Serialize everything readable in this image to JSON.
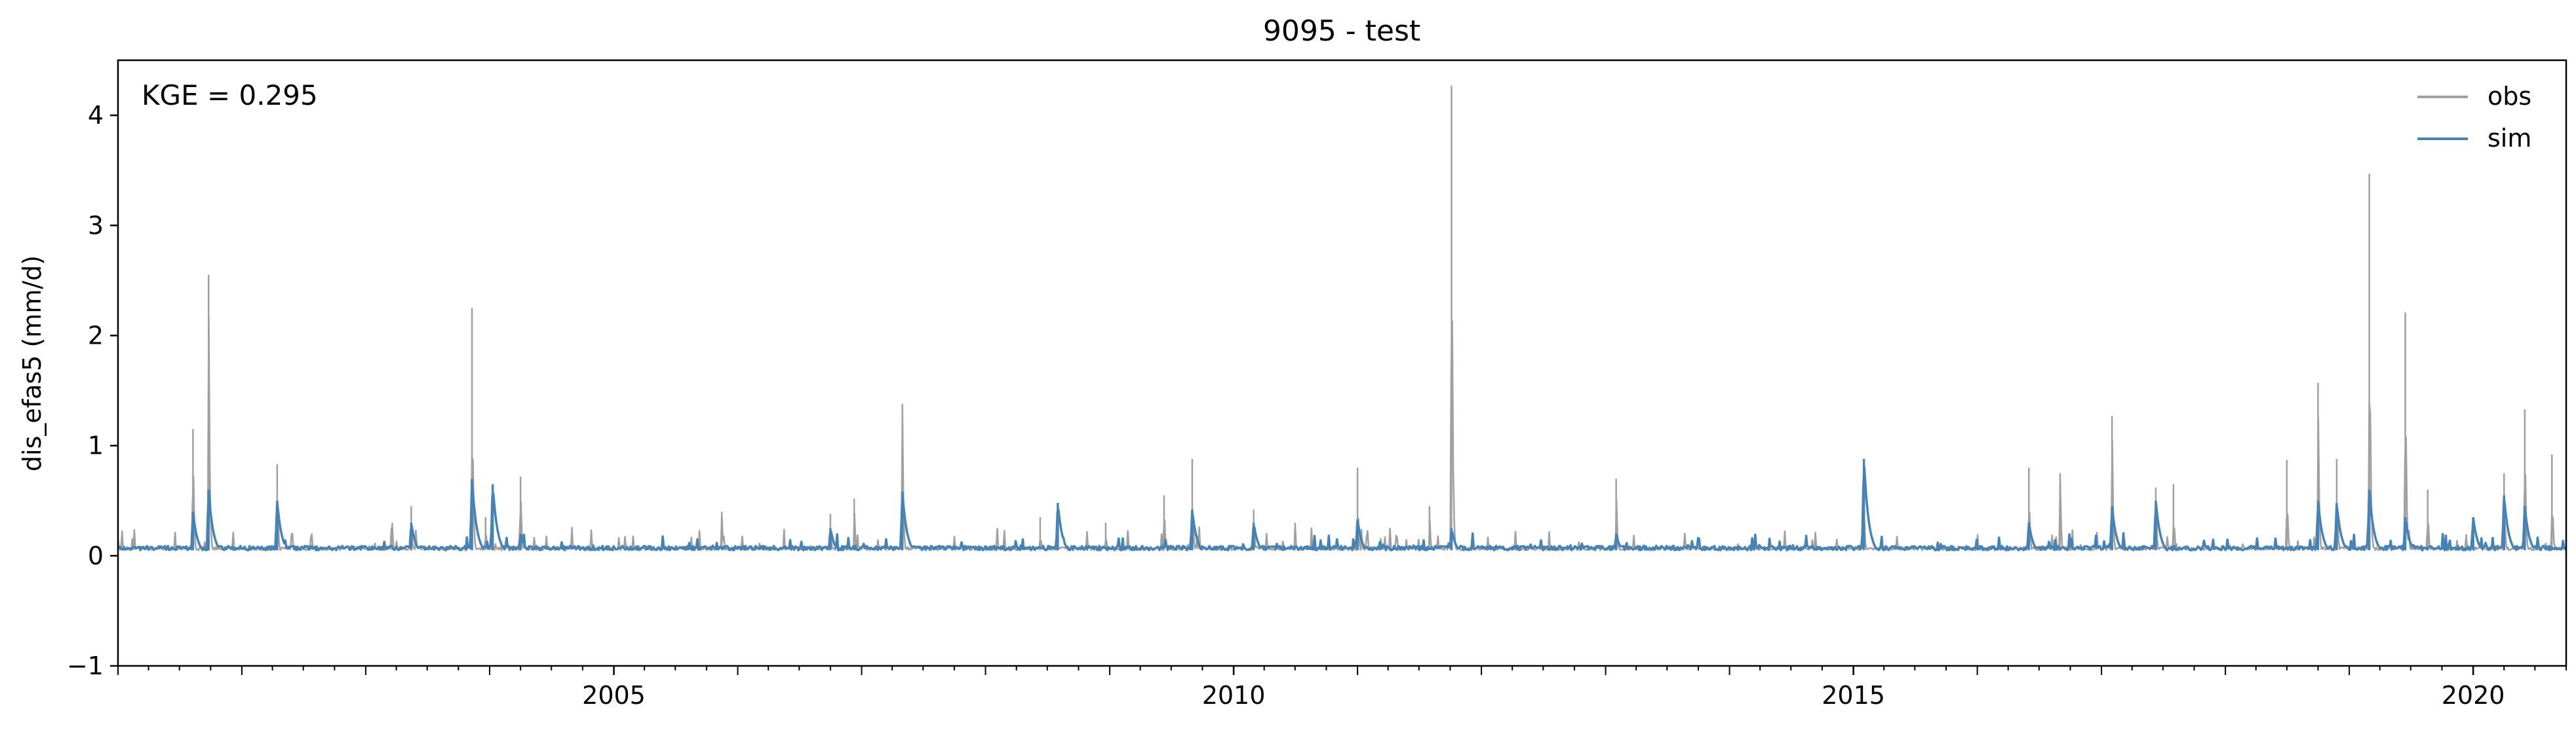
{
  "chart_data": {
    "type": "line",
    "title": "9095 - test",
    "ylabel": "dis_efas5 (mm/d)",
    "xlabel": "",
    "annotation": "KGE = 0.295",
    "xlim": [
      "2001-01-01",
      "2020-10-01"
    ],
    "ylim": [
      -1,
      4.5
    ],
    "yticks": [
      -1,
      0,
      1,
      2,
      3,
      4
    ],
    "xticks": [
      "2005-01-01",
      "2010-01-01",
      "2015-01-01",
      "2020-01-01"
    ],
    "xtick_labels": [
      "2005",
      "2010",
      "2015",
      "2020"
    ],
    "legend": {
      "placement": "top-right",
      "entries": [
        "obs",
        "sim"
      ]
    },
    "grid": false,
    "series": [
      {
        "name": "obs",
        "color": "#a0a0a0",
        "baseline": 0.05,
        "x": [
          "2001-05-01",
          "2001-08-10",
          "2001-09-25",
          "2002-04-15",
          "2003-03-20",
          "2003-05-15",
          "2003-11-10",
          "2003-12-20",
          "2004-04-01",
          "2005-11-15",
          "2006-10-01",
          "2006-12-10",
          "2007-05-01",
          "2008-06-10",
          "2008-12-20",
          "2009-06-10",
          "2009-09-01",
          "2010-03-01",
          "2010-07-01",
          "2011-01-01",
          "2011-08-01",
          "2011-10-05",
          "2013-02-01",
          "2015-02-01",
          "2016-06-01",
          "2016-09-01",
          "2017-02-01",
          "2017-06-10",
          "2017-08-01",
          "2018-07-01",
          "2018-10-01",
          "2018-11-25",
          "2019-03-01",
          "2019-06-15",
          "2019-08-20",
          "2020-04-01",
          "2020-06-01",
          "2020-08-20"
        ],
        "y": [
          0.05,
          1.15,
          2.55,
          0.83,
          0.3,
          0.45,
          2.25,
          0.35,
          0.72,
          0.4,
          0.38,
          0.52,
          1.38,
          0.35,
          0.3,
          0.55,
          0.88,
          0.42,
          0.3,
          0.8,
          0.45,
          4.27,
          0.7,
          0.5,
          0.8,
          0.75,
          1.27,
          0.62,
          0.65,
          0.87,
          1.57,
          0.88,
          3.47,
          2.21,
          0.6,
          0.75,
          1.33,
          0.92
        ]
      },
      {
        "name": "sim",
        "color": "#4682b4",
        "baseline": 0.05,
        "x": [
          "2001-05-01",
          "2001-08-10",
          "2001-09-25",
          "2002-04-15",
          "2003-05-15",
          "2003-11-10",
          "2004-01-10",
          "2004-04-01",
          "2006-10-01",
          "2007-05-01",
          "2008-08-01",
          "2009-09-01",
          "2010-03-01",
          "2011-01-01",
          "2011-10-05",
          "2013-02-01",
          "2015-02-01",
          "2016-06-01",
          "2017-02-01",
          "2017-06-10",
          "2018-10-01",
          "2018-11-25",
          "2019-03-01",
          "2019-06-15",
          "2020-01-01",
          "2020-04-01",
          "2020-06-01"
        ],
        "y": [
          0.05,
          0.4,
          0.6,
          0.5,
          0.3,
          0.7,
          0.65,
          0.2,
          0.25,
          0.58,
          0.48,
          0.42,
          0.3,
          0.33,
          0.25,
          0.2,
          0.88,
          0.3,
          0.45,
          0.5,
          0.5,
          0.48,
          0.6,
          0.35,
          0.35,
          0.55,
          0.45
        ]
      }
    ]
  }
}
